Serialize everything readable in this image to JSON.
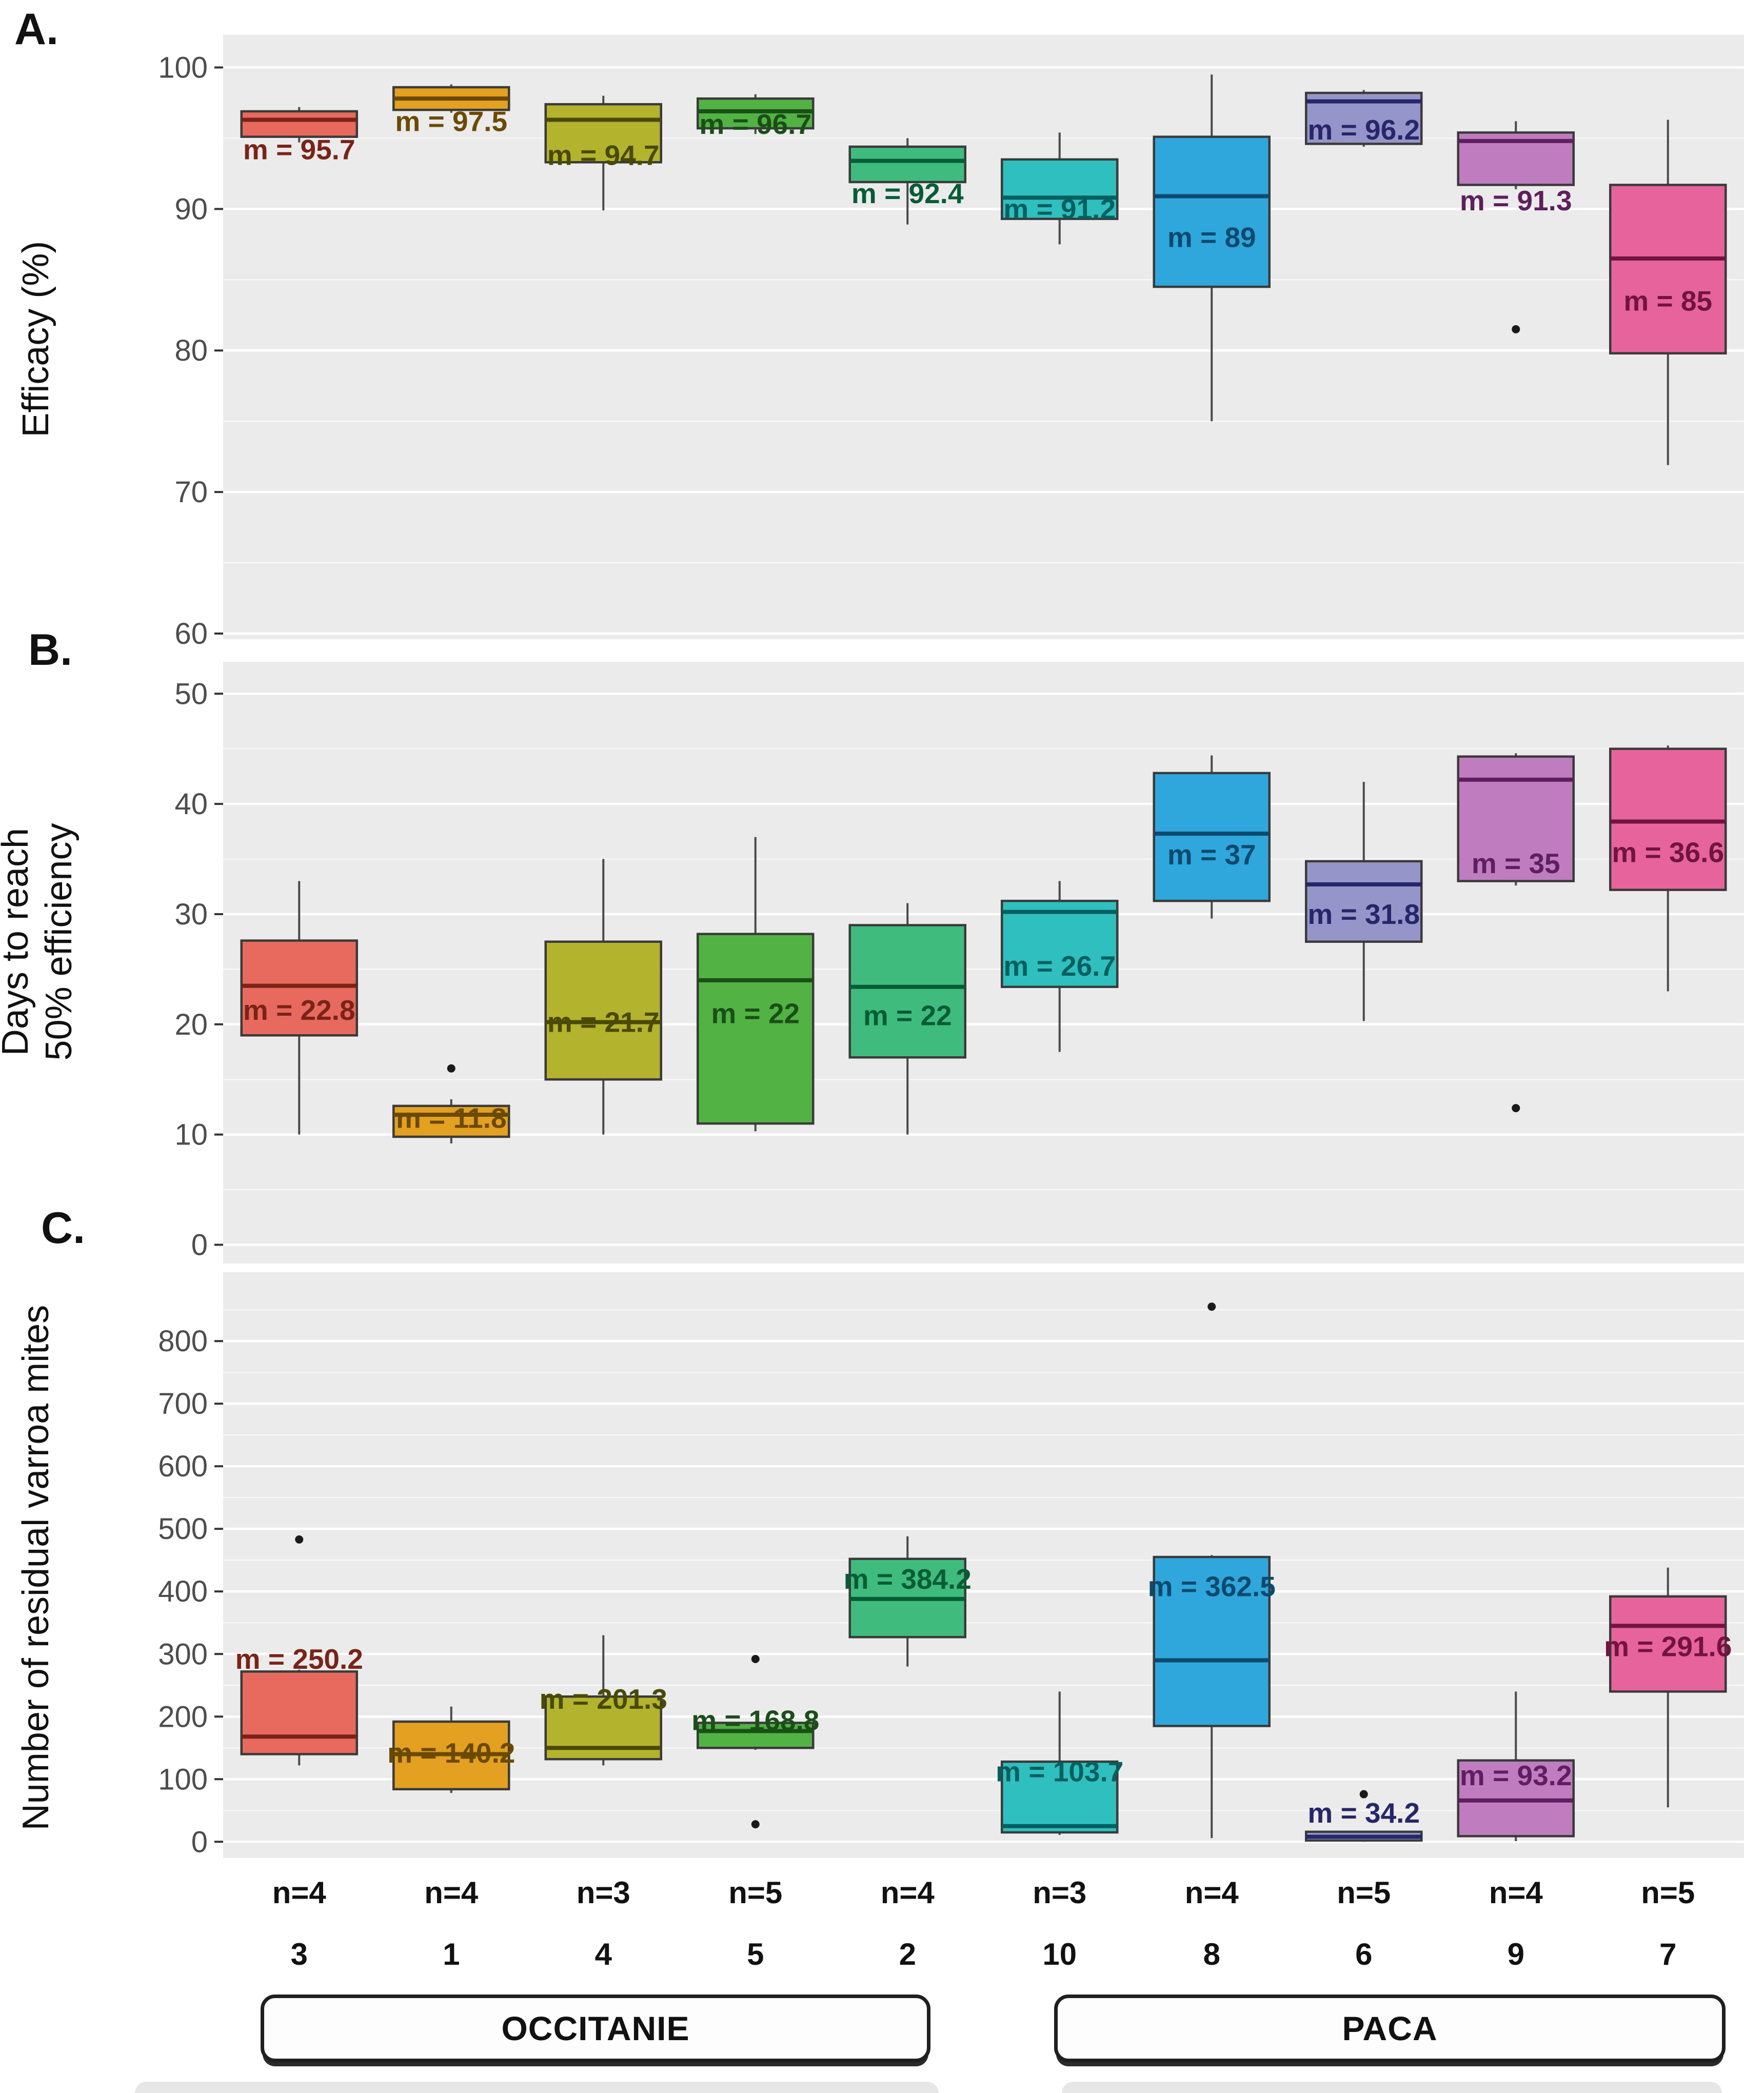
{
  "figure_title": "",
  "columns": [
    {
      "id": "3",
      "n": "n=4",
      "region": "OCCITANIE",
      "fill": "#E8695E",
      "dark": "#7A2318"
    },
    {
      "id": "1",
      "n": "n=4",
      "region": "OCCITANIE",
      "fill": "#E3A021",
      "dark": "#6B4A00"
    },
    {
      "id": "4",
      "n": "n=3",
      "region": "OCCITANIE",
      "fill": "#B3B32E",
      "dark": "#4A4A05"
    },
    {
      "id": "5",
      "n": "n=5",
      "region": "OCCITANIE",
      "fill": "#52B244",
      "dark": "#1A4F17"
    },
    {
      "id": "2",
      "n": "n=4",
      "region": "OCCITANIE",
      "fill": "#3FBC7D",
      "dark": "#075C36"
    },
    {
      "id": "10",
      "n": "n=3",
      "region": "PACA",
      "fill": "#30BFBF",
      "dark": "#045F5F"
    },
    {
      "id": "8",
      "n": "n=4",
      "region": "PACA",
      "fill": "#2FA7DC",
      "dark": "#0C4A6E"
    },
    {
      "id": "6",
      "n": "n=5",
      "region": "PACA",
      "fill": "#9695C9",
      "dark": "#26266B"
    },
    {
      "id": "9",
      "n": "n=4",
      "region": "PACA",
      "fill": "#BF7CBF",
      "dark": "#5E1F5E"
    },
    {
      "id": "7",
      "n": "n=5",
      "region": "PACA",
      "fill": "#E7639B",
      "dark": "#701440"
    }
  ],
  "regions": [
    {
      "label": "OCCITANIE"
    },
    {
      "label": "PACA"
    }
  ],
  "chart_data": [
    {
      "type": "box",
      "panel_letter": "A.",
      "ylabel": "Efficacy (%)",
      "ylabel_lines": [
        "Efficacy (%)"
      ],
      "ylim": [
        59.6,
        102.3
      ],
      "yticks": [
        100,
        90,
        80,
        70,
        60
      ],
      "grid": true,
      "boxes": [
        {
          "lo": 94.7,
          "q1": 95.1,
          "med": 96.3,
          "q3": 96.9,
          "hi": 97.2,
          "outliers": [],
          "label": "m = 95.7",
          "label_v": 94.2
        },
        {
          "lo": 96.8,
          "q1": 97.0,
          "med": 97.8,
          "q3": 98.6,
          "hi": 98.8,
          "outliers": [],
          "label": "m = 97.5",
          "label_v": 96.2
        },
        {
          "lo": 89.9,
          "q1": 93.3,
          "med": 96.3,
          "q3": 97.4,
          "hi": 98.0,
          "outliers": [],
          "label": "m = 94.7",
          "label_v": 93.8
        },
        {
          "lo": 95.3,
          "q1": 95.7,
          "med": 96.9,
          "q3": 97.8,
          "hi": 98.1,
          "outliers": [],
          "label": "m = 96.7",
          "label_v": 96.0
        },
        {
          "lo": 88.9,
          "q1": 91.9,
          "med": 93.4,
          "q3": 94.4,
          "hi": 95.0,
          "outliers": [],
          "label": "m = 92.4",
          "label_v": 91.1
        },
        {
          "lo": 87.5,
          "q1": 89.3,
          "med": 90.8,
          "q3": 93.5,
          "hi": 95.4,
          "outliers": [],
          "label": "m = 91.2",
          "label_v": 90.0
        },
        {
          "lo": 75.0,
          "q1": 84.5,
          "med": 90.9,
          "q3": 95.1,
          "hi": 99.5,
          "outliers": [],
          "label": "m = 89",
          "label_v": 88.0
        },
        {
          "lo": 94.4,
          "q1": 94.6,
          "med": 97.6,
          "q3": 98.2,
          "hi": 98.4,
          "outliers": [],
          "label": "m = 96.2",
          "label_v": 95.6
        },
        {
          "lo": 91.4,
          "q1": 91.7,
          "med": 94.8,
          "q3": 95.4,
          "hi": 96.2,
          "outliers": [
            81.5
          ],
          "label": "m = 91.3",
          "label_v": 90.6
        },
        {
          "lo": 71.9,
          "q1": 79.8,
          "med": 86.5,
          "q3": 91.7,
          "hi": 96.3,
          "outliers": [],
          "label": "m = 85",
          "label_v": 83.5
        }
      ]
    },
    {
      "type": "box",
      "panel_letter": "B.",
      "ylabel": "Days to reach 50% efficiency",
      "ylabel_lines": [
        "Days to reach",
        "50% efficiency"
      ],
      "ylim": [
        -1.7,
        52.9
      ],
      "yticks": [
        50,
        40,
        30,
        20,
        10,
        0
      ],
      "grid": true,
      "boxes": [
        {
          "lo": 10.0,
          "q1": 19.0,
          "med": 23.5,
          "q3": 27.6,
          "hi": 33.0,
          "outliers": [],
          "label": "m = 22.8",
          "label_v": 21.3
        },
        {
          "lo": 9.2,
          "q1": 9.8,
          "med": 11.8,
          "q3": 12.6,
          "hi": 13.2,
          "outliers": [
            16
          ],
          "label": "m = 11.8",
          "label_v": 11.5
        },
        {
          "lo": 10.0,
          "q1": 15.0,
          "med": 20.2,
          "q3": 27.5,
          "hi": 35.0,
          "outliers": [],
          "label": "m = 21.7",
          "label_v": 20.2
        },
        {
          "lo": 10.3,
          "q1": 11.0,
          "med": 24.0,
          "q3": 28.2,
          "hi": 37.0,
          "outliers": [],
          "label": "m = 22",
          "label_v": 21.0
        },
        {
          "lo": 10.0,
          "q1": 17.0,
          "med": 23.4,
          "q3": 29.0,
          "hi": 31.0,
          "outliers": [],
          "label": "m = 22",
          "label_v": 20.8
        },
        {
          "lo": 17.5,
          "q1": 23.4,
          "med": 30.2,
          "q3": 31.2,
          "hi": 33.0,
          "outliers": [],
          "label": "m = 26.7",
          "label_v": 25.3
        },
        {
          "lo": 29.6,
          "q1": 31.2,
          "med": 37.3,
          "q3": 42.8,
          "hi": 44.4,
          "outliers": [],
          "label": "m = 37",
          "label_v": 35.4
        },
        {
          "lo": 20.3,
          "q1": 27.5,
          "med": 32.7,
          "q3": 34.8,
          "hi": 42.0,
          "outliers": [],
          "label": "m = 31.8",
          "label_v": 30.0
        },
        {
          "lo": 32.6,
          "q1": 33.0,
          "med": 42.2,
          "q3": 44.3,
          "hi": 44.6,
          "outliers": [
            12.4
          ],
          "label": "m = 35",
          "label_v": 34.6
        },
        {
          "lo": 23.0,
          "q1": 32.2,
          "med": 38.4,
          "q3": 45.0,
          "hi": 45.3,
          "outliers": [],
          "label": "m = 36.6",
          "label_v": 35.6
        }
      ]
    },
    {
      "type": "box",
      "panel_letter": "C.",
      "ylabel": "Number of residual varroa mites",
      "ylabel_lines": [
        "Number of residual varroa mites"
      ],
      "ylim": [
        -26,
        910
      ],
      "yticks": [
        800,
        700,
        600,
        500,
        400,
        300,
        200,
        100,
        0
      ],
      "grid": true,
      "boxes": [
        {
          "lo": 122,
          "q1": 140,
          "med": 168,
          "q3": 272,
          "hi": 275,
          "outliers": [
            483
          ],
          "label": "m = 250.2",
          "label_v": 292
        },
        {
          "lo": 78,
          "q1": 84,
          "med": 140,
          "q3": 192,
          "hi": 216,
          "outliers": [],
          "label": "m = 140.2",
          "label_v": 142
        },
        {
          "lo": 122,
          "q1": 132,
          "med": 150,
          "q3": 232,
          "hi": 330,
          "outliers": [],
          "label": "m = 201.3",
          "label_v": 228
        },
        {
          "lo": 147,
          "q1": 150,
          "med": 177,
          "q3": 190,
          "hi": 192,
          "outliers": [
            292,
            28
          ],
          "label": "m = 168.8",
          "label_v": 194
        },
        {
          "lo": 280,
          "q1": 327,
          "med": 388,
          "q3": 452,
          "hi": 488,
          "outliers": [],
          "label": "m = 384.2",
          "label_v": 420
        },
        {
          "lo": 11,
          "q1": 15,
          "med": 25,
          "q3": 128,
          "hi": 240,
          "outliers": [],
          "label": "m = 103.7",
          "label_v": 112
        },
        {
          "lo": 6,
          "q1": 185,
          "med": 290,
          "q3": 455,
          "hi": 458,
          "outliers": [
            855
          ],
          "label": "m = 362.5",
          "label_v": 408
        },
        {
          "lo": 0,
          "q1": 2,
          "med": 8,
          "q3": 16,
          "hi": 17,
          "outliers": [
            76
          ],
          "label": "m = 34.2",
          "label_v": 46
        },
        {
          "lo": 1,
          "q1": 9,
          "med": 66,
          "q3": 130,
          "hi": 240,
          "outliers": [],
          "label": "m = 93.2",
          "label_v": 106
        },
        {
          "lo": 55,
          "q1": 240,
          "med": 345,
          "q3": 392,
          "hi": 438,
          "outliers": [],
          "label": "m = 291.6",
          "label_v": 312
        }
      ]
    }
  ]
}
